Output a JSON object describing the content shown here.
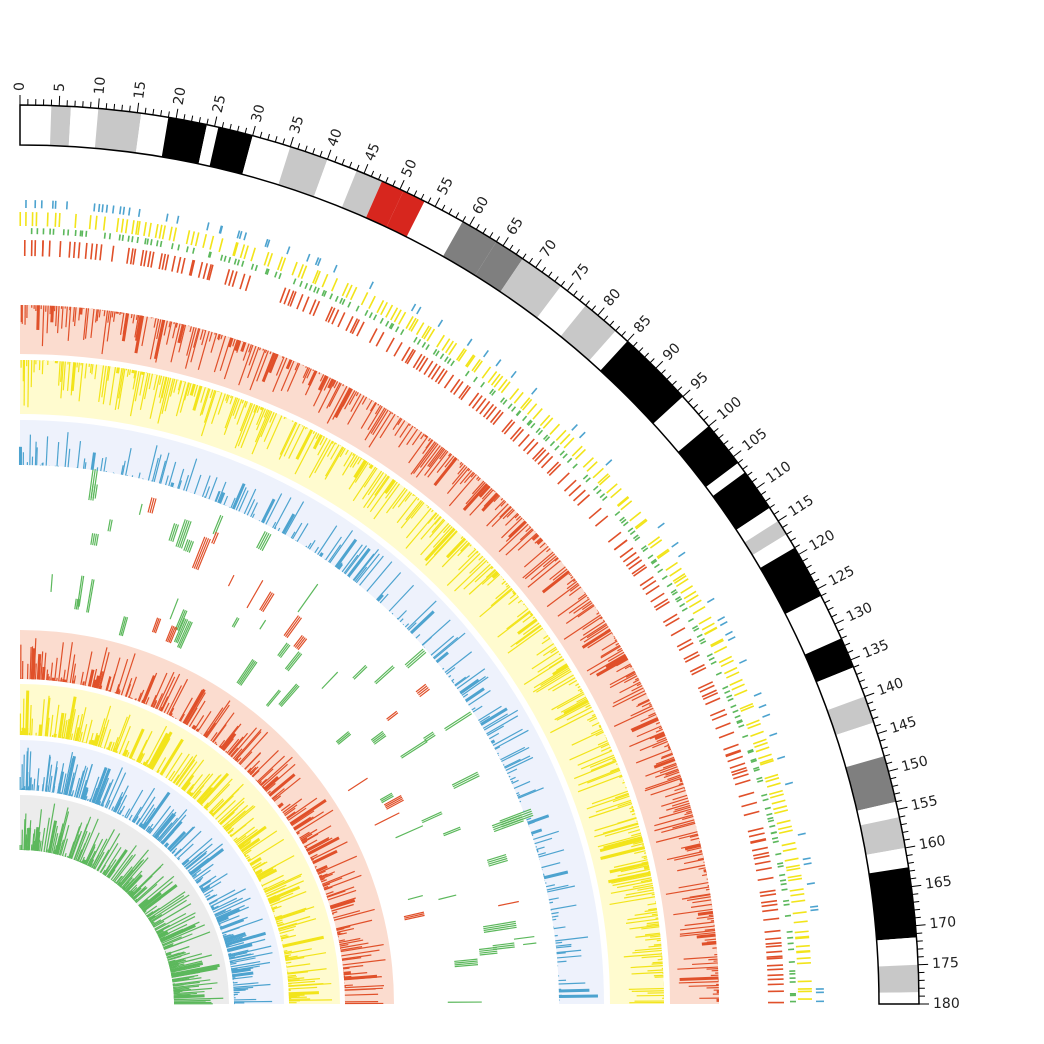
{
  "chart_data": {
    "type": "circos",
    "ideogram": {
      "scale_start": 0,
      "scale_end": 180,
      "label_step": 5,
      "minor_tick_step": 1,
      "tick_labels": [
        "0",
        "5",
        "10",
        "15",
        "20",
        "25",
        "30",
        "35",
        "40",
        "45",
        "50",
        "55",
        "60",
        "65",
        "70",
        "75",
        "80",
        "85",
        "90",
        "95",
        "100",
        "105",
        "110",
        "115",
        "120",
        "125",
        "130",
        "135",
        "140",
        "145",
        "150",
        "155",
        "160",
        "165",
        "170",
        "175",
        "180"
      ],
      "bands": [
        {
          "start": 0,
          "end": 4,
          "stain": "white"
        },
        {
          "start": 4,
          "end": 6.5,
          "stain": "lightgray"
        },
        {
          "start": 6.5,
          "end": 10,
          "stain": "white"
        },
        {
          "start": 10,
          "end": 15.5,
          "stain": "lightgray"
        },
        {
          "start": 15.5,
          "end": 19,
          "stain": "white"
        },
        {
          "start": 19,
          "end": 24,
          "stain": "black"
        },
        {
          "start": 24,
          "end": 25.5,
          "stain": "white"
        },
        {
          "start": 25.5,
          "end": 30,
          "stain": "black"
        },
        {
          "start": 30,
          "end": 35,
          "stain": "white"
        },
        {
          "start": 35,
          "end": 40,
          "stain": "lightgray"
        },
        {
          "start": 40,
          "end": 44,
          "stain": "white"
        },
        {
          "start": 44,
          "end": 47.5,
          "stain": "lightgray"
        },
        {
          "start": 47.5,
          "end": 50.5,
          "stain": "red"
        },
        {
          "start": 50.5,
          "end": 53.5,
          "stain": "red"
        },
        {
          "start": 53.5,
          "end": 59,
          "stain": "white"
        },
        {
          "start": 59,
          "end": 64,
          "stain": "darkgray"
        },
        {
          "start": 64,
          "end": 68,
          "stain": "darkgray"
        },
        {
          "start": 68,
          "end": 74,
          "stain": "lightgray"
        },
        {
          "start": 74,
          "end": 78,
          "stain": "white"
        },
        {
          "start": 78,
          "end": 83,
          "stain": "lightgray"
        },
        {
          "start": 83,
          "end": 85,
          "stain": "white"
        },
        {
          "start": 85,
          "end": 95,
          "stain": "black"
        },
        {
          "start": 95,
          "end": 100,
          "stain": "white"
        },
        {
          "start": 100,
          "end": 106,
          "stain": "black"
        },
        {
          "start": 106,
          "end": 107.5,
          "stain": "white"
        },
        {
          "start": 107.5,
          "end": 113,
          "stain": "black"
        },
        {
          "start": 113,
          "end": 115,
          "stain": "white"
        },
        {
          "start": 115,
          "end": 117,
          "stain": "lightgray"
        },
        {
          "start": 117,
          "end": 119,
          "stain": "white"
        },
        {
          "start": 119,
          "end": 126,
          "stain": "black"
        },
        {
          "start": 126,
          "end": 132,
          "stain": "white"
        },
        {
          "start": 132,
          "end": 136,
          "stain": "black"
        },
        {
          "start": 136,
          "end": 140,
          "stain": "white"
        },
        {
          "start": 140,
          "end": 143.5,
          "stain": "lightgray"
        },
        {
          "start": 143.5,
          "end": 148,
          "stain": "white"
        },
        {
          "start": 148,
          "end": 154,
          "stain": "darkgray"
        },
        {
          "start": 154,
          "end": 156,
          "stain": "white"
        },
        {
          "start": 156,
          "end": 160,
          "stain": "lightgray"
        },
        {
          "start": 160,
          "end": 162.5,
          "stain": "white"
        },
        {
          "start": 162.5,
          "end": 171.5,
          "stain": "black"
        },
        {
          "start": 171.5,
          "end": 175,
          "stain": "white"
        },
        {
          "start": 175,
          "end": 178.5,
          "stain": "lightgray"
        },
        {
          "start": 178.5,
          "end": 180,
          "stain": "white"
        }
      ]
    },
    "tracks": [
      {
        "kind": "histogram",
        "background": "gray",
        "series_color": "green",
        "seed": 11,
        "density": 0.55,
        "orientation": "out"
      },
      {
        "kind": "histogram",
        "background": "blue",
        "series_color": "blue",
        "seed": 23,
        "density": 0.55,
        "orientation": "out"
      },
      {
        "kind": "histogram",
        "background": "yellow",
        "series_color": "yellow",
        "seed": 37,
        "density": 0.62,
        "orientation": "out"
      },
      {
        "kind": "histogram",
        "background": "salmon",
        "series_color": "red",
        "seed": 41,
        "density": 0.6,
        "orientation": "out"
      },
      {
        "kind": "segments",
        "background": "none",
        "series_color": "green_red",
        "seed": 53,
        "density": 0.35,
        "orientation": "out"
      },
      {
        "kind": "histogram",
        "background": "blue",
        "series_color": "blue",
        "seed": 67,
        "density": 0.45,
        "orientation": "out"
      },
      {
        "kind": "histogram",
        "background": "yellow",
        "series_color": "yellow",
        "seed": 71,
        "density": 0.9,
        "orientation": "in"
      },
      {
        "kind": "histogram",
        "background": "salmon",
        "series_color": "red",
        "seed": 83,
        "density": 0.95,
        "orientation": "in"
      },
      {
        "kind": "tiles",
        "background": "none",
        "series_color": "mixed",
        "seed": 97,
        "density": 0.7,
        "orientation": "out"
      }
    ],
    "colors": {
      "black": "#000000",
      "darkgray": "#7f7f7f",
      "lightgray": "#c8c8c8",
      "white": "#ffffff",
      "red_band": "#d7261e",
      "green": "#5cb85c",
      "blue": "#4da3cf",
      "yellow": "#f2e41a",
      "red": "#e0502a",
      "bg_gray": "#ececec",
      "bg_blue": "#eef2fc",
      "bg_yellow": "#fffbcf",
      "bg_salmon": "#fbdccf"
    }
  }
}
